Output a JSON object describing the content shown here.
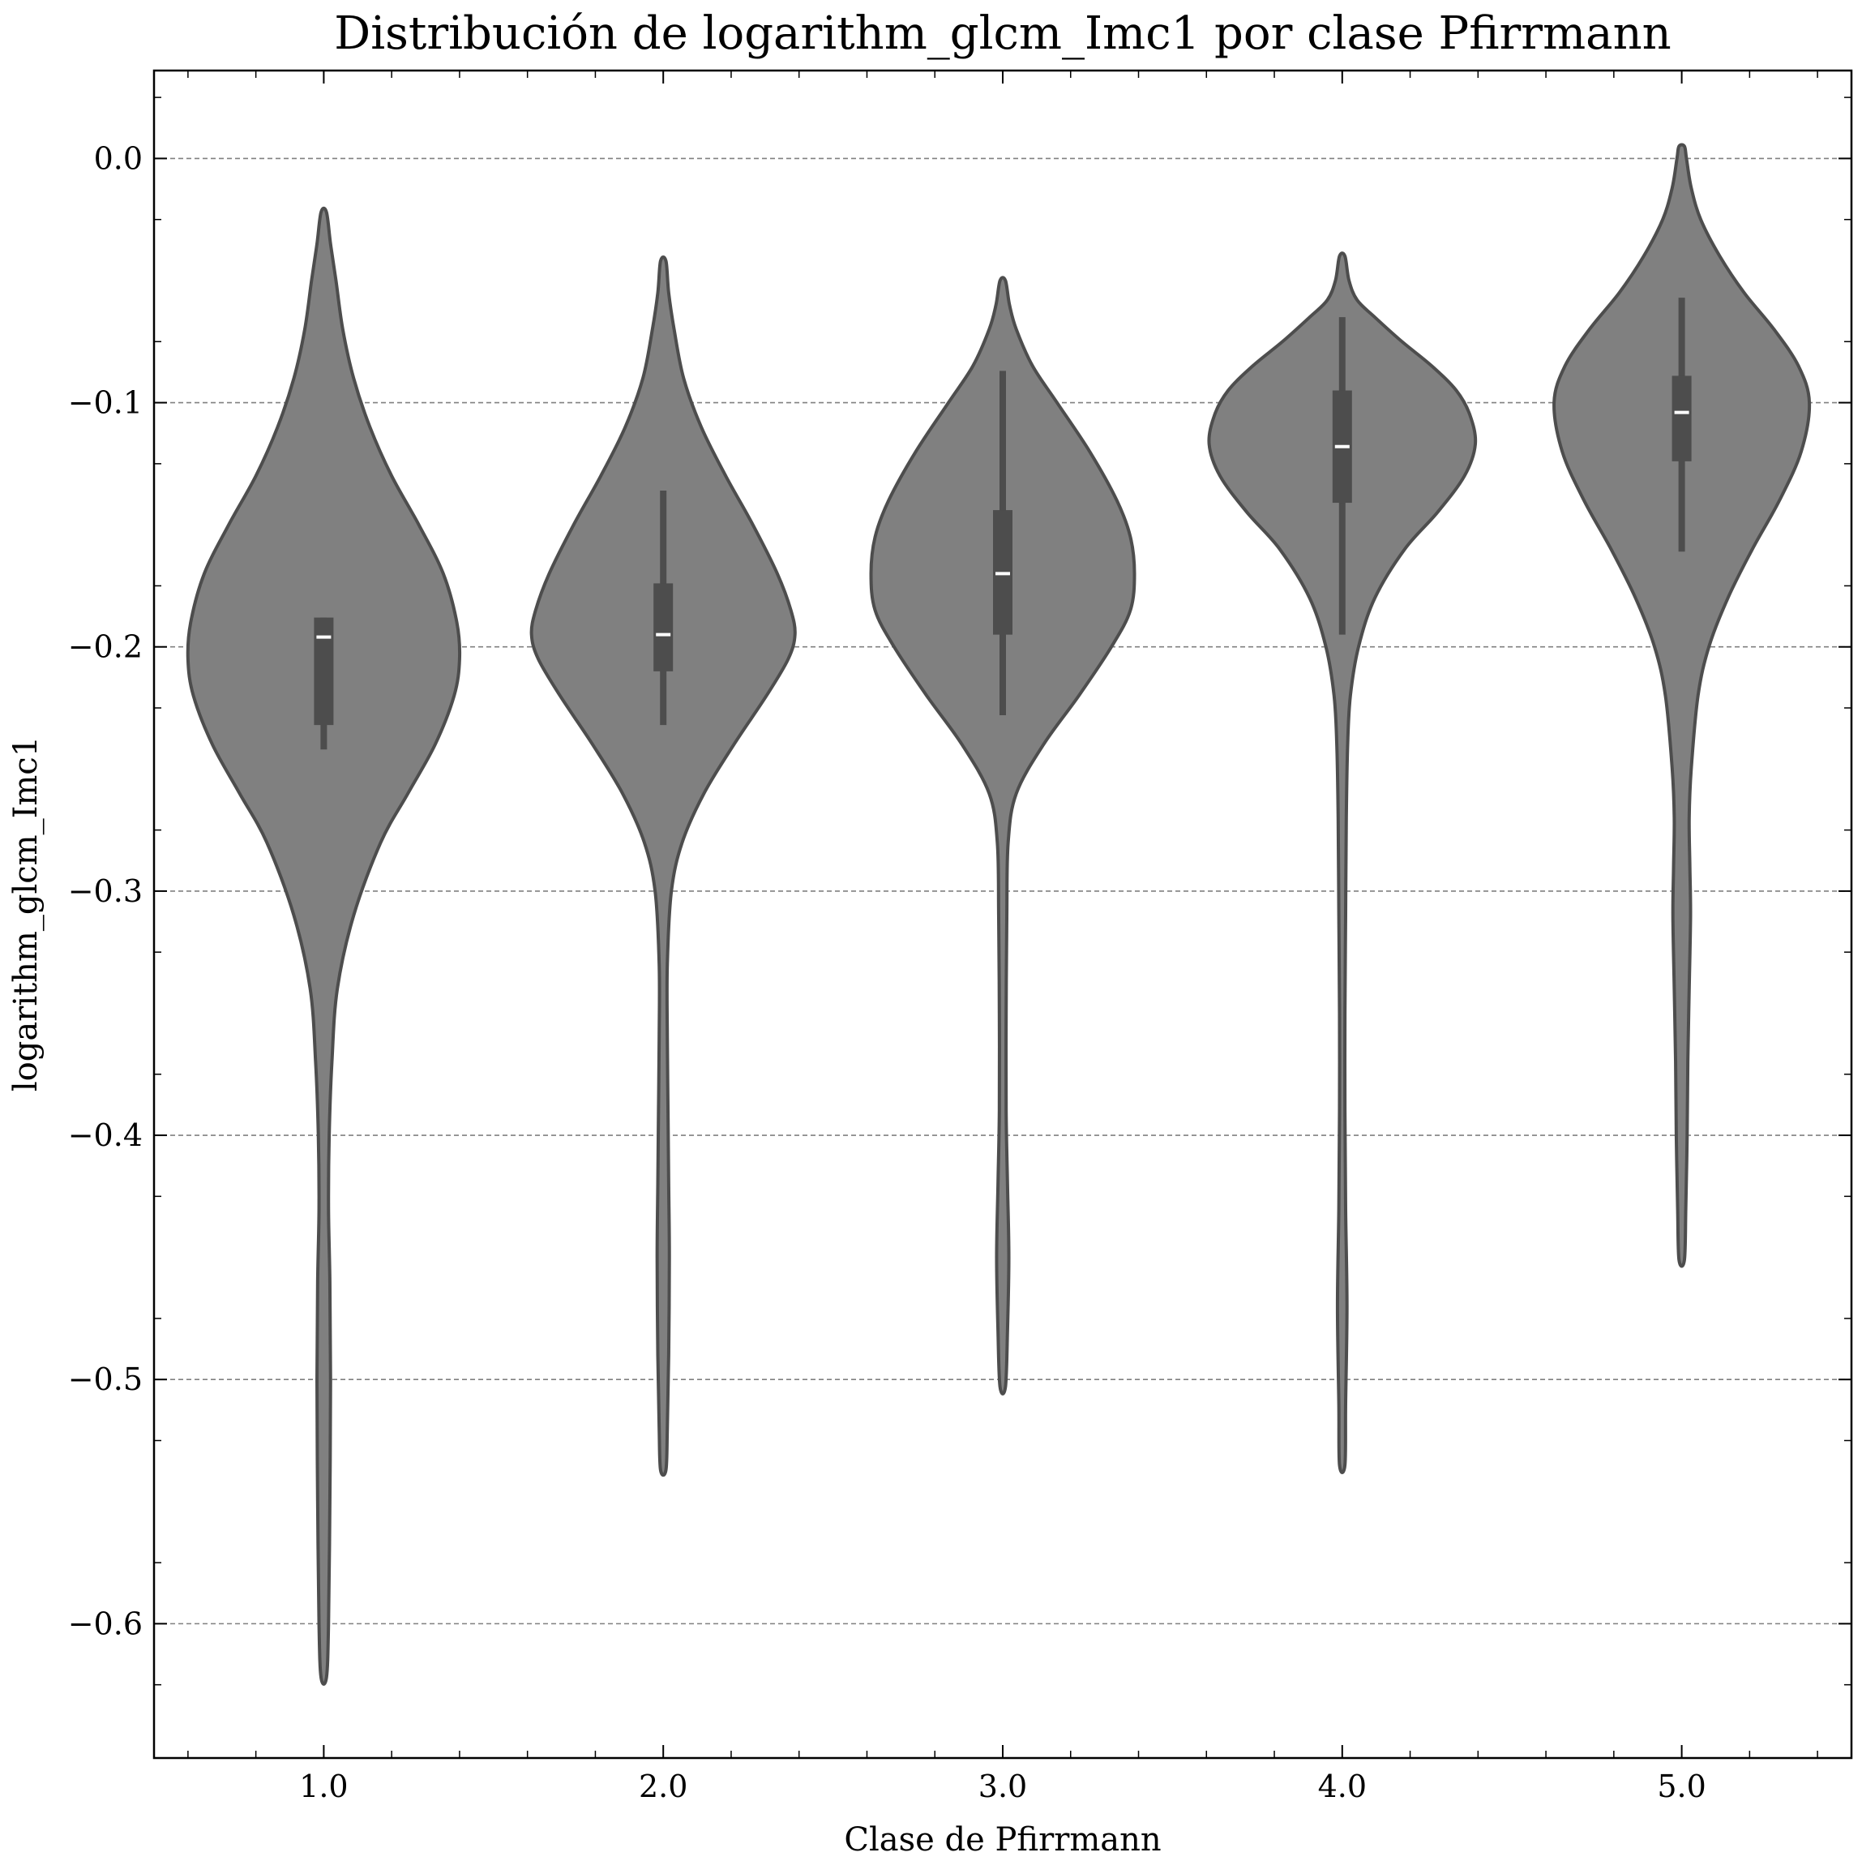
{
  "chart_data": {
    "type": "violin",
    "title": "Distribución de logarithm_glcm_Imc1 por clase Pfirrmann",
    "xlabel": "Clase de Pfirrmann",
    "ylabel": "logarithm_glcm_Imc1",
    "categories": [
      "1.0",
      "2.0",
      "3.0",
      "4.0",
      "5.0"
    ],
    "y_ticks": [
      "0.0",
      "−0.1",
      "−0.2",
      "−0.3",
      "−0.4",
      "−0.5",
      "−0.6"
    ],
    "y_tick_values": [
      0.0,
      -0.1,
      -0.2,
      -0.3,
      -0.4,
      -0.5,
      -0.6
    ],
    "ylim": [
      -0.655,
      0.036
    ],
    "grid": "horizontal dashed",
    "colors": {
      "violin_fill": "#808080",
      "violin_edge": "#4d4d4d",
      "box": "#4d4d4d",
      "median": "#ffffff",
      "grid": "#808080"
    },
    "violins": [
      {
        "category": "1.0",
        "min": -0.622,
        "max": -0.022,
        "q1": -0.232,
        "median": -0.196,
        "q3": -0.188,
        "whisker_low": -0.242,
        "whisker_high": -0.188,
        "profile": [
          [
            -0.622,
            0.02
          ],
          [
            -0.6,
            0.035
          ],
          [
            -0.55,
            0.045
          ],
          [
            -0.5,
            0.05
          ],
          [
            -0.46,
            0.045
          ],
          [
            -0.43,
            0.035
          ],
          [
            -0.4,
            0.04
          ],
          [
            -0.37,
            0.06
          ],
          [
            -0.34,
            0.1
          ],
          [
            -0.31,
            0.22
          ],
          [
            -0.28,
            0.42
          ],
          [
            -0.26,
            0.62
          ],
          [
            -0.24,
            0.82
          ],
          [
            -0.22,
            0.96
          ],
          [
            -0.205,
            1.0
          ],
          [
            -0.19,
            0.98
          ],
          [
            -0.17,
            0.88
          ],
          [
            -0.15,
            0.7
          ],
          [
            -0.13,
            0.5
          ],
          [
            -0.11,
            0.34
          ],
          [
            -0.09,
            0.22
          ],
          [
            -0.07,
            0.14
          ],
          [
            -0.05,
            0.09
          ],
          [
            -0.035,
            0.05
          ],
          [
            -0.022,
            0.02
          ]
        ]
      },
      {
        "category": "2.0",
        "min": -0.537,
        "max": -0.042,
        "q1": -0.21,
        "median": -0.195,
        "q3": -0.174,
        "whisker_low": -0.232,
        "whisker_high": -0.136,
        "profile": [
          [
            -0.537,
            0.02
          ],
          [
            -0.52,
            0.03
          ],
          [
            -0.49,
            0.04
          ],
          [
            -0.45,
            0.045
          ],
          [
            -0.42,
            0.04
          ],
          [
            -0.39,
            0.035
          ],
          [
            -0.36,
            0.03
          ],
          [
            -0.33,
            0.03
          ],
          [
            -0.3,
            0.06
          ],
          [
            -0.28,
            0.14
          ],
          [
            -0.26,
            0.3
          ],
          [
            -0.24,
            0.52
          ],
          [
            -0.22,
            0.76
          ],
          [
            -0.205,
            0.92
          ],
          [
            -0.195,
            0.97
          ],
          [
            -0.185,
            0.94
          ],
          [
            -0.17,
            0.84
          ],
          [
            -0.15,
            0.66
          ],
          [
            -0.13,
            0.46
          ],
          [
            -0.11,
            0.28
          ],
          [
            -0.09,
            0.15
          ],
          [
            -0.07,
            0.08
          ],
          [
            -0.055,
            0.04
          ],
          [
            -0.042,
            0.02
          ]
        ]
      },
      {
        "category": "3.0",
        "min": -0.503,
        "max": -0.05,
        "q1": -0.195,
        "median": -0.17,
        "q3": -0.144,
        "whisker_low": -0.228,
        "whisker_high": -0.087,
        "profile": [
          [
            -0.503,
            0.02
          ],
          [
            -0.48,
            0.035
          ],
          [
            -0.45,
            0.045
          ],
          [
            -0.42,
            0.035
          ],
          [
            -0.39,
            0.025
          ],
          [
            -0.35,
            0.025
          ],
          [
            -0.31,
            0.03
          ],
          [
            -0.28,
            0.04
          ],
          [
            -0.26,
            0.1
          ],
          [
            -0.24,
            0.3
          ],
          [
            -0.22,
            0.56
          ],
          [
            -0.2,
            0.8
          ],
          [
            -0.185,
            0.94
          ],
          [
            -0.17,
            0.97
          ],
          [
            -0.155,
            0.94
          ],
          [
            -0.14,
            0.84
          ],
          [
            -0.12,
            0.64
          ],
          [
            -0.1,
            0.4
          ],
          [
            -0.085,
            0.22
          ],
          [
            -0.07,
            0.1
          ],
          [
            -0.06,
            0.05
          ],
          [
            -0.05,
            0.02
          ]
        ]
      },
      {
        "category": "4.0",
        "min": -0.535,
        "max": -0.04,
        "q1": -0.141,
        "median": -0.118,
        "q3": -0.095,
        "whisker_low": -0.195,
        "whisker_high": -0.065,
        "profile": [
          [
            -0.535,
            0.02
          ],
          [
            -0.51,
            0.025
          ],
          [
            -0.47,
            0.035
          ],
          [
            -0.43,
            0.025
          ],
          [
            -0.39,
            0.02
          ],
          [
            -0.35,
            0.02
          ],
          [
            -0.31,
            0.025
          ],
          [
            -0.27,
            0.03
          ],
          [
            -0.24,
            0.04
          ],
          [
            -0.22,
            0.06
          ],
          [
            -0.2,
            0.12
          ],
          [
            -0.18,
            0.24
          ],
          [
            -0.16,
            0.46
          ],
          [
            -0.145,
            0.7
          ],
          [
            -0.13,
            0.9
          ],
          [
            -0.117,
            0.98
          ],
          [
            -0.105,
            0.94
          ],
          [
            -0.095,
            0.84
          ],
          [
            -0.085,
            0.66
          ],
          [
            -0.075,
            0.44
          ],
          [
            -0.065,
            0.24
          ],
          [
            -0.058,
            0.11
          ],
          [
            -0.05,
            0.05
          ],
          [
            -0.04,
            0.02
          ]
        ]
      },
      {
        "category": "5.0",
        "min": -0.451,
        "max": 0.005,
        "q1": -0.124,
        "median": -0.104,
        "q3": -0.089,
        "whisker_low": -0.161,
        "whisker_high": -0.057,
        "profile": [
          [
            -0.451,
            0.02
          ],
          [
            -0.43,
            0.03
          ],
          [
            -0.4,
            0.04
          ],
          [
            -0.37,
            0.045
          ],
          [
            -0.34,
            0.055
          ],
          [
            -0.31,
            0.065
          ],
          [
            -0.29,
            0.06
          ],
          [
            -0.27,
            0.055
          ],
          [
            -0.25,
            0.07
          ],
          [
            -0.22,
            0.12
          ],
          [
            -0.2,
            0.2
          ],
          [
            -0.18,
            0.34
          ],
          [
            -0.16,
            0.52
          ],
          [
            -0.14,
            0.72
          ],
          [
            -0.12,
            0.88
          ],
          [
            -0.1,
            0.94
          ],
          [
            -0.085,
            0.86
          ],
          [
            -0.07,
            0.68
          ],
          [
            -0.055,
            0.46
          ],
          [
            -0.04,
            0.28
          ],
          [
            -0.025,
            0.14
          ],
          [
            -0.012,
            0.07
          ],
          [
            0.0,
            0.035
          ],
          [
            0.005,
            0.02
          ]
        ]
      }
    ]
  }
}
